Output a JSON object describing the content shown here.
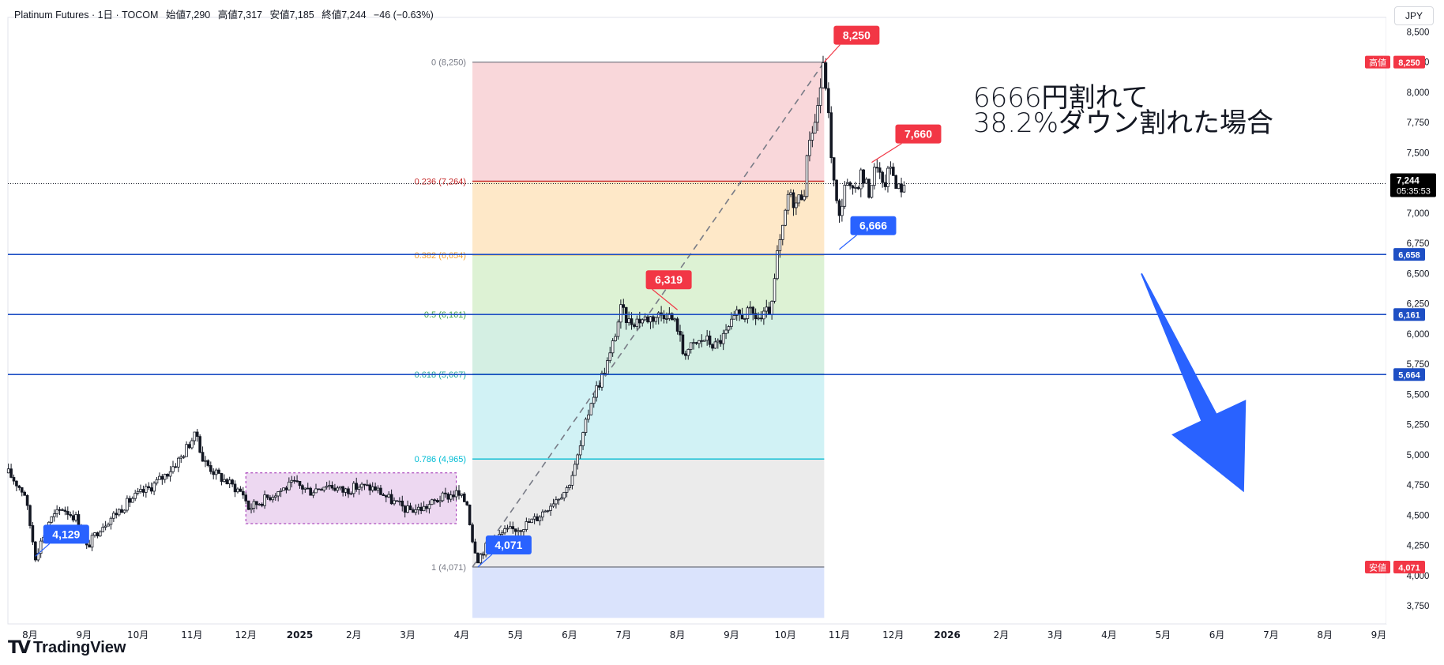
{
  "header": {
    "symbol": "Platinum Futures · 1日 · TOCOM",
    "open": "始値7,290",
    "high": "高値7,317",
    "low": "安値7,185",
    "close": "終値7,244",
    "change": "−46 (−0.63%)"
  },
  "currency_button": "JPY",
  "branding": {
    "logo_mark": "TV",
    "name": "TradingView"
  },
  "annotation": {
    "line1": "6666円割れて",
    "line2": "38.2%ダウン割れた場合"
  },
  "colors": {
    "up": "#131722",
    "down": "#131722",
    "support": "#1e4fc4",
    "red_label": "#f23645",
    "blue_label": "#2962ff",
    "arrow": "#2962ff"
  },
  "chart_data": {
    "type": "candlestick",
    "title": "Platinum Futures · 1日 · TOCOM",
    "y_range": [
      3600,
      8620
    ],
    "y_ticks": [
      "3,750",
      "4,000",
      "4,250",
      "4,500",
      "4,750",
      "5,000",
      "5,250",
      "5,500",
      "5,750",
      "6,000",
      "6,250",
      "6,500",
      "6,750",
      "7,000",
      "7,250",
      "7,500",
      "7,750",
      "8,000",
      "8,250",
      "8,500"
    ],
    "x_labels": [
      {
        "label": "8月",
        "month": 0
      },
      {
        "label": "9月",
        "month": 1
      },
      {
        "label": "10月",
        "month": 2
      },
      {
        "label": "11月",
        "month": 3
      },
      {
        "label": "12月",
        "month": 4
      },
      {
        "label": "2025",
        "month": 5,
        "bold": true
      },
      {
        "label": "2月",
        "month": 6
      },
      {
        "label": "3月",
        "month": 7
      },
      {
        "label": "4月",
        "month": 8
      },
      {
        "label": "5月",
        "month": 9
      },
      {
        "label": "6月",
        "month": 10
      },
      {
        "label": "7月",
        "month": 11
      },
      {
        "label": "8月",
        "month": 12
      },
      {
        "label": "9月",
        "month": 13
      },
      {
        "label": "10月",
        "month": 14
      },
      {
        "label": "11月",
        "month": 15
      },
      {
        "label": "12月",
        "month": 16
      },
      {
        "label": "2026",
        "month": 17,
        "bold": true
      },
      {
        "label": "2月",
        "month": 18
      },
      {
        "label": "3月",
        "month": 19
      },
      {
        "label": "4月",
        "month": 20
      },
      {
        "label": "5月",
        "month": 21
      },
      {
        "label": "6月",
        "month": 22
      },
      {
        "label": "7月",
        "month": 23
      },
      {
        "label": "8月",
        "month": 24
      },
      {
        "label": "9月",
        "month": 25
      }
    ],
    "price_path": [
      [
        -0.4,
        4850
      ],
      [
        -0.1,
        4680
      ],
      [
        0.1,
        4160
      ],
      [
        0.35,
        4450
      ],
      [
        0.6,
        4560
      ],
      [
        0.85,
        4480
      ],
      [
        1.05,
        4230
      ],
      [
        1.3,
        4400
      ],
      [
        1.6,
        4520
      ],
      [
        1.9,
        4640
      ],
      [
        2.2,
        4720
      ],
      [
        2.5,
        4830
      ],
      [
        2.8,
        4980
      ],
      [
        3.0,
        5130
      ],
      [
        3.1,
        5160
      ],
      [
        3.2,
        4960
      ],
      [
        3.45,
        4840
      ],
      [
        3.7,
        4760
      ],
      [
        3.95,
        4680
      ],
      [
        4.05,
        4560
      ],
      [
        4.3,
        4620
      ],
      [
        4.6,
        4700
      ],
      [
        4.9,
        4760
      ],
      [
        5.2,
        4700
      ],
      [
        5.5,
        4760
      ],
      [
        5.8,
        4700
      ],
      [
        6.1,
        4740
      ],
      [
        6.4,
        4720
      ],
      [
        6.7,
        4620
      ],
      [
        7.0,
        4540
      ],
      [
        7.3,
        4560
      ],
      [
        7.6,
        4640
      ],
      [
        7.9,
        4680
      ],
      [
        8.1,
        4600
      ],
      [
        8.2,
        4300
      ],
      [
        8.3,
        4140
      ],
      [
        8.5,
        4270
      ],
      [
        8.8,
        4360
      ],
      [
        9.1,
        4400
      ],
      [
        9.4,
        4480
      ],
      [
        9.7,
        4620
      ],
      [
        9.95,
        4720
      ],
      [
        10.1,
        4900
      ],
      [
        10.25,
        5150
      ],
      [
        10.4,
        5450
      ],
      [
        10.6,
        5650
      ],
      [
        10.75,
        5820
      ],
      [
        10.95,
        6200
      ],
      [
        11.1,
        6100
      ],
      [
        11.3,
        6120
      ],
      [
        11.55,
        6140
      ],
      [
        11.8,
        6180
      ],
      [
        12.0,
        6060
      ],
      [
        12.1,
        5850
      ],
      [
        12.3,
        5900
      ],
      [
        12.5,
        5960
      ],
      [
        12.7,
        5900
      ],
      [
        12.9,
        6000
      ],
      [
        13.1,
        6150
      ],
      [
        13.35,
        6170
      ],
      [
        13.55,
        6120
      ],
      [
        13.75,
        6220
      ],
      [
        13.85,
        6650
      ],
      [
        13.95,
        6850
      ],
      [
        14.05,
        7150
      ],
      [
        14.2,
        7080
      ],
      [
        14.35,
        7200
      ],
      [
        14.45,
        7650
      ],
      [
        14.55,
        7750
      ],
      [
        14.65,
        8050
      ],
      [
        14.72,
        8250
      ],
      [
        14.78,
        7900
      ],
      [
        14.85,
        7500
      ],
      [
        14.92,
        7150
      ],
      [
        15.0,
        6950
      ],
      [
        15.1,
        7250
      ],
      [
        15.25,
        7150
      ],
      [
        15.4,
        7320
      ],
      [
        15.55,
        7180
      ],
      [
        15.7,
        7420
      ],
      [
        15.8,
        7200
      ],
      [
        15.95,
        7380
      ],
      [
        16.1,
        7200
      ],
      [
        16.22,
        7244
      ]
    ],
    "consolidation_box": {
      "m0": 4.0,
      "m1": 7.9,
      "p_top": 4850,
      "p_bottom": 4430
    },
    "fibonacci": {
      "m0": 8.2,
      "m1": 14.72,
      "p0": 8250,
      "p1": 4071,
      "levels": [
        {
          "label": "0 (8,250)",
          "ratio": 0,
          "price": 8250,
          "color": "#787b86",
          "fill": "#f7c9cd"
        },
        {
          "label": "0.236 (7,264)",
          "ratio": 0.236,
          "price": 7264,
          "color": "#c62828",
          "fill": "#fde0b5"
        },
        {
          "label": "0.382 (6,654)",
          "ratio": 0.382,
          "price": 6654,
          "color": "#f0a030",
          "fill": "#d2edc6"
        },
        {
          "label": "0.5 (6,161)",
          "ratio": 0.5,
          "price": 6161,
          "color": "#43a047",
          "fill": "#c5ead9"
        },
        {
          "label": "0.618 (5,667)",
          "ratio": 0.618,
          "price": 5667,
          "color": "#26a69a",
          "fill": "#c2eef2"
        },
        {
          "label": "0.786 (4,965)",
          "ratio": 0.786,
          "price": 4965,
          "color": "#00bcd4",
          "fill": "#e4e4e4"
        },
        {
          "label": "1 (4,071)",
          "ratio": 1,
          "price": 4071,
          "color": "#787b86",
          "fill": "#cdd9fb"
        }
      ],
      "extension_bottom": 3650
    },
    "support_lines": [
      {
        "price": 6658,
        "label": "6,658"
      },
      {
        "price": 6161,
        "label": "6,161"
      },
      {
        "price": 5664,
        "label": "5,664"
      }
    ],
    "current_price": {
      "price": 7244,
      "label": "7,244",
      "countdown": "05:35:53"
    },
    "axis_badges": [
      {
        "tag": "高値",
        "value": "8,250",
        "price": 8250
      },
      {
        "tag": "安値",
        "value": "4,071",
        "price": 4071
      }
    ],
    "callouts": [
      {
        "text": "8,250",
        "m": 14.72,
        "price": 8250,
        "color": "red",
        "dx": 12,
        "dy": -26
      },
      {
        "text": "7,660",
        "m": 15.6,
        "price": 7420,
        "color": "red",
        "dx": 30,
        "dy": -28
      },
      {
        "text": "6,319",
        "m": 12.0,
        "price": 6200,
        "color": "red",
        "dx": -40,
        "dy": -30
      },
      {
        "text": "6,666",
        "m": 15.0,
        "price": 6700,
        "color": "blue",
        "dx": 14,
        "dy": -22
      },
      {
        "text": "4,129",
        "m": 0.1,
        "price": 4160,
        "color": "blue",
        "dx": 10,
        "dy": -20
      },
      {
        "text": "4,071",
        "m": 8.3,
        "price": 4071,
        "color": "blue",
        "dx": 10,
        "dy": -20
      }
    ],
    "down_arrow": {
      "from": [
        20.6,
        6500
      ],
      "to": [
        22.5,
        4690
      ]
    }
  }
}
